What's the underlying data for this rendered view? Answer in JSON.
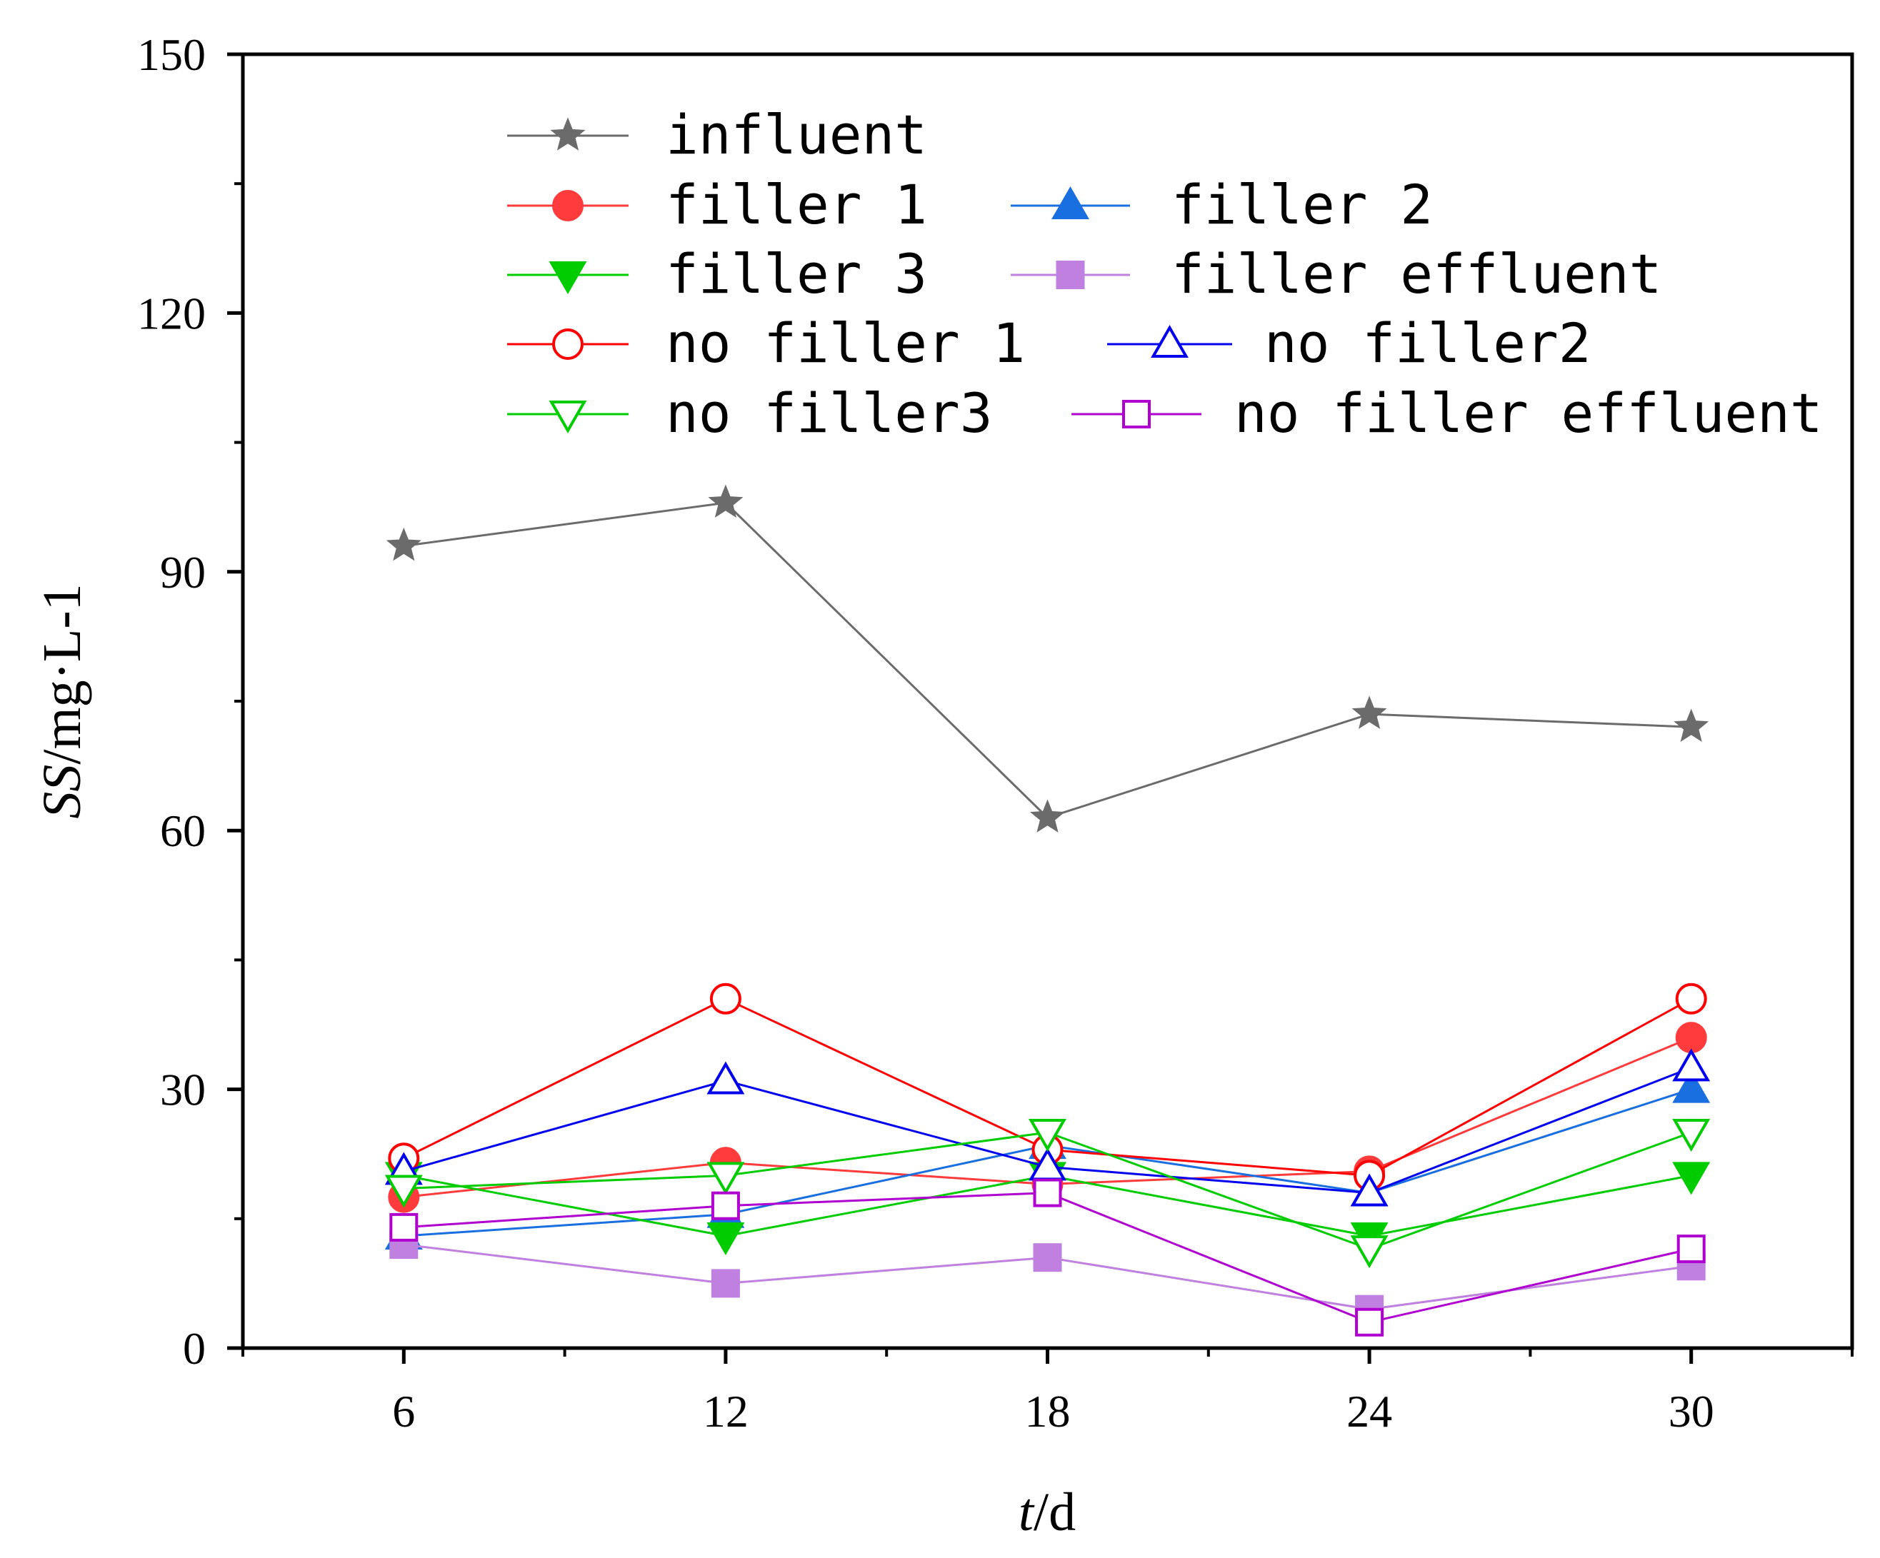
{
  "chart_data": {
    "type": "line",
    "title": "",
    "xlabel": "t/d",
    "xlabel_italic": "t",
    "xlabel_rest": "/d",
    "ylabel": "SS/mg·L-1",
    "ylabel_italic": "SS",
    "ylabel_rest": "/mg·L-1",
    "x": [
      6,
      12,
      18,
      24,
      30
    ],
    "xlim": [
      3,
      33
    ],
    "ylim": [
      0,
      150
    ],
    "xticks": [
      "6",
      "12",
      "18",
      "24",
      "30"
    ],
    "yticks": [
      "0",
      "30",
      "60",
      "90",
      "120",
      "150"
    ],
    "grid": false,
    "legend_position": "top",
    "series": [
      {
        "name": "influent",
        "color": "#6b6b6b",
        "marker": "star",
        "filled": true,
        "values": [
          93.0,
          98.0,
          61.5,
          73.5,
          72.0
        ]
      },
      {
        "name": "filler 1",
        "color": "#ff3b3b",
        "marker": "circle",
        "filled": true,
        "values": [
          17.5,
          21.5,
          19.0,
          20.5,
          36.0
        ]
      },
      {
        "name": "filler 2",
        "color": "#1a6fe0",
        "marker": "triangle-up",
        "filled": true,
        "values": [
          13.0,
          15.5,
          23.5,
          18.0,
          30.0
        ]
      },
      {
        "name": "filler 3",
        "color": "#00cc00",
        "marker": "triangle-down",
        "filled": true,
        "values": [
          20.0,
          13.0,
          20.0,
          13.0,
          20.0
        ]
      },
      {
        "name": "filler effluent",
        "color": "#c080e0",
        "marker": "square",
        "filled": true,
        "values": [
          12.0,
          7.5,
          10.5,
          4.5,
          9.5
        ]
      },
      {
        "name": "no filler 1",
        "color": "#ff0000",
        "marker": "circle",
        "filled": false,
        "values": [
          22.0,
          40.5,
          23.0,
          20.0,
          40.5
        ]
      },
      {
        "name": "no filler2",
        "color": "#0000ee",
        "marker": "triangle-up",
        "filled": false,
        "values": [
          20.5,
          31.0,
          21.0,
          18.0,
          32.5
        ]
      },
      {
        "name": "no filler3",
        "color": "#00cc00",
        "marker": "triangle-down",
        "filled": false,
        "values": [
          18.5,
          20.0,
          25.0,
          11.5,
          25.0
        ]
      },
      {
        "name": "no filler effluent",
        "color": "#b000d0",
        "marker": "square",
        "filled": false,
        "values": [
          14.0,
          16.5,
          18.0,
          3.0,
          11.5
        ]
      }
    ]
  }
}
